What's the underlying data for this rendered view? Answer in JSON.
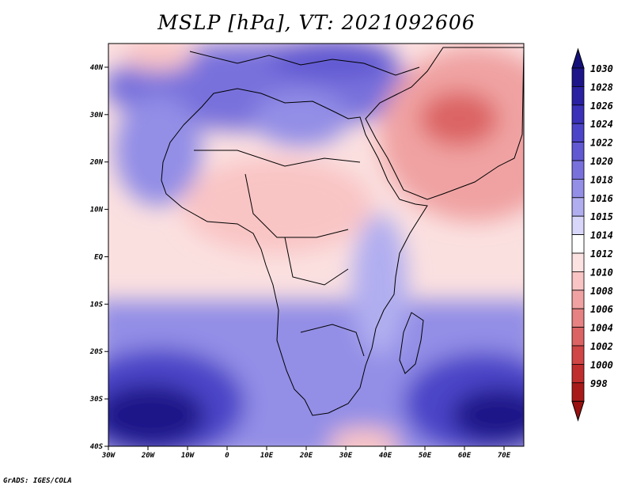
{
  "title": "MSLP [hPa], VT: 2021092606",
  "credit": "GrADS: IGES/COLA",
  "map": {
    "projection": "lat-lon",
    "lon_range": [
      -30,
      75
    ],
    "lat_range": [
      -40,
      45
    ],
    "lon_ticks": [
      {
        "value": -30,
        "label": "30W"
      },
      {
        "value": -20,
        "label": "20W"
      },
      {
        "value": -10,
        "label": "10W"
      },
      {
        "value": 0,
        "label": "0"
      },
      {
        "value": 10,
        "label": "10E"
      },
      {
        "value": 20,
        "label": "20E"
      },
      {
        "value": 30,
        "label": "30E"
      },
      {
        "value": 40,
        "label": "40E"
      },
      {
        "value": 50,
        "label": "50E"
      },
      {
        "value": 60,
        "label": "60E"
      },
      {
        "value": 70,
        "label": "70E"
      }
    ],
    "lat_ticks": [
      {
        "value": 40,
        "label": "40N"
      },
      {
        "value": 30,
        "label": "30N"
      },
      {
        "value": 20,
        "label": "20N"
      },
      {
        "value": 10,
        "label": "10N"
      },
      {
        "value": 0,
        "label": "EQ"
      },
      {
        "value": -10,
        "label": "10S"
      },
      {
        "value": -20,
        "label": "20S"
      },
      {
        "value": -30,
        "label": "30S"
      },
      {
        "value": -40,
        "label": "40S"
      }
    ]
  },
  "colorbar": {
    "levels": [
      {
        "label": "1030",
        "color": "#1c1488"
      },
      {
        "label": "1028",
        "color": "#2a20a2"
      },
      {
        "label": "1026",
        "color": "#3a31b8"
      },
      {
        "label": "1024",
        "color": "#4c44c8"
      },
      {
        "label": "1022",
        "color": "#6059d2"
      },
      {
        "label": "1020",
        "color": "#7871dc"
      },
      {
        "label": "1018",
        "color": "#938ee6"
      },
      {
        "label": "1016",
        "color": "#b1aef0"
      },
      {
        "label": "1015",
        "color": "#d8d7fa"
      },
      {
        "label": "1014",
        "color": "#ffffff"
      },
      {
        "label": "1012",
        "color": "#fde2e2"
      },
      {
        "label": "1010",
        "color": "#f9c4c4"
      },
      {
        "label": "1008",
        "color": "#f0a2a2"
      },
      {
        "label": "1006",
        "color": "#e68282"
      },
      {
        "label": "1004",
        "color": "#dc6363"
      },
      {
        "label": "1002",
        "color": "#d04545"
      },
      {
        "label": "1000",
        "color": "#c02d2d"
      },
      {
        "label": "998",
        "color": "#a81a1a"
      }
    ],
    "top_arrow_color": "#14107a",
    "bottom_arrow_color": "#991111"
  }
}
